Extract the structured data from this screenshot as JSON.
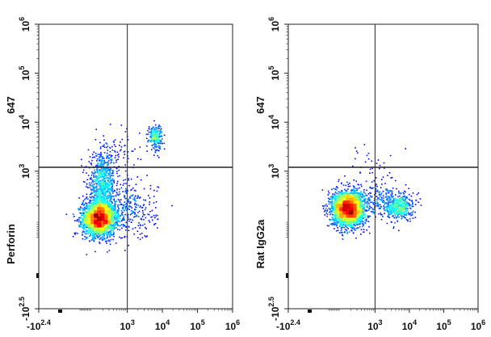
{
  "chart_data": [
    {
      "type": "scatter",
      "title": "",
      "xlabel": "",
      "ylabel_prefix": "647",
      "ylabel_main": "Perforin",
      "x_scale": "biexponential",
      "y_scale": "biexponential",
      "xlim": [
        -251,
        1000000
      ],
      "ylim": [
        -316,
        1000000
      ],
      "x_tick_labels": [
        "-10^2.4",
        "10^3",
        "10^4",
        "10^5",
        "10^6"
      ],
      "y_tick_labels": [
        "-10^2.5",
        "10^3",
        "10^4",
        "10^5",
        "10^6"
      ],
      "gates": {
        "x": 1000,
        "y": 1200
      },
      "populations": [
        {
          "name": "main",
          "x_center": 150,
          "y_center": 150,
          "spread": "large",
          "color_scale": "density jet"
        },
        {
          "name": "upper-right",
          "x_center": 6000,
          "y_center": 5500,
          "spread": "small"
        },
        {
          "name": "left-column",
          "x_center": 150,
          "y_center": 1500,
          "spread": "column"
        }
      ],
      "colors": {
        "high": "#ff0000",
        "mid": "#00ff00",
        "low": "#0000ff"
      }
    },
    {
      "type": "scatter",
      "title": "",
      "xlabel": "",
      "ylabel_prefix": "647",
      "ylabel_main": "Rat IgG2a",
      "x_scale": "biexponential",
      "y_scale": "biexponential",
      "xlim": [
        -251,
        1000000
      ],
      "ylim": [
        -316,
        1000000
      ],
      "x_tick_labels": [
        "-10^2.4",
        "10^3",
        "10^4",
        "10^5",
        "10^6"
      ],
      "y_tick_labels": [
        "-10^2.5",
        "10^3",
        "10^4",
        "10^5",
        "10^6"
      ],
      "gates": {
        "x": 1000,
        "y": 1200
      },
      "populations": [
        {
          "name": "main",
          "x_center": 150,
          "y_center": 180,
          "spread": "large",
          "color_scale": "density jet"
        },
        {
          "name": "right-lower",
          "x_center": 5000,
          "y_center": 200,
          "spread": "medium"
        }
      ],
      "colors": {
        "high": "#ff0000",
        "mid": "#00ff00",
        "low": "#0000ff"
      }
    }
  ]
}
